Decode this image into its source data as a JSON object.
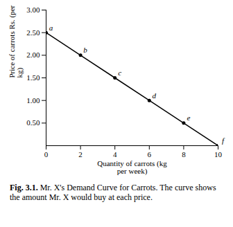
{
  "chart_data": {
    "type": "line",
    "xlabel": "Quantity of carrots (kg per week)",
    "ylabel": "Price of carrots Rs. (per kg)",
    "caption_label": "Fig. 3.1.",
    "caption": "Mr. X's Demand Curve for Carrots. The curve shows the amount Mr. X would buy at each price.",
    "x": [
      0,
      2,
      4,
      6,
      8,
      10
    ],
    "values": [
      2.5,
      2.0,
      1.5,
      1.0,
      0.5,
      0.0
    ],
    "point_labels": [
      "a",
      "b",
      "c",
      "d",
      "e",
      "f"
    ],
    "color": "#000000",
    "marker": "circle",
    "xlim": [
      0,
      10
    ],
    "ylim": [
      0,
      3
    ],
    "xticks": [
      0,
      2,
      4,
      6,
      8,
      10
    ],
    "yticks": [
      {
        "value": 0.5,
        "label": "0.50"
      },
      {
        "value": 1.0,
        "label": "1.00"
      },
      {
        "value": 1.5,
        "label": "1.50"
      },
      {
        "value": 2.0,
        "label": "2.00"
      },
      {
        "value": 2.5,
        "label": "2.50"
      },
      {
        "value": 3.0,
        "label": "3.00"
      }
    ],
    "grid": false
  }
}
